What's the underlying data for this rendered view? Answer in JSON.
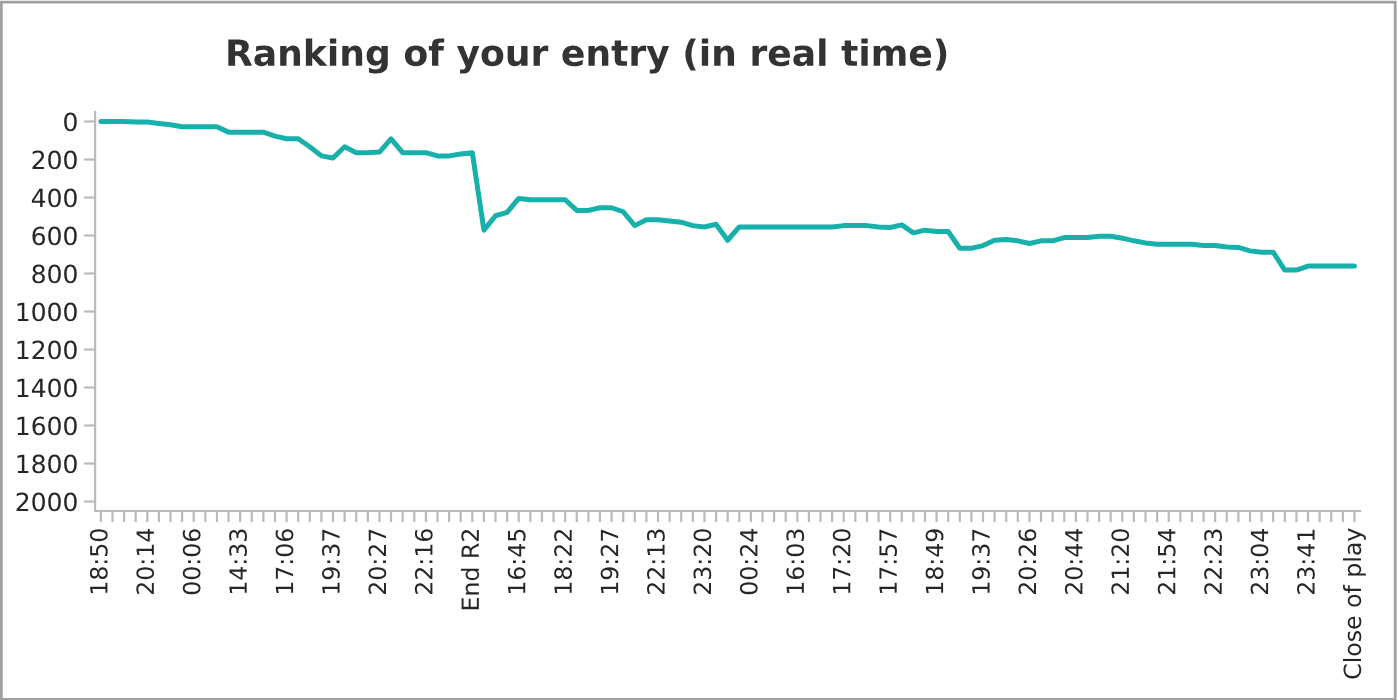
{
  "chart_data": {
    "type": "line",
    "title": "Ranking of your entry (in real time)",
    "categories": [
      "18:50",
      null,
      null,
      null,
      "20:14",
      null,
      null,
      null,
      "00:06",
      null,
      null,
      null,
      "14:33",
      null,
      null,
      null,
      "17:06",
      null,
      null,
      null,
      "19:37",
      null,
      null,
      null,
      "20:27",
      null,
      null,
      null,
      "22:16",
      null,
      null,
      null,
      "End R2",
      null,
      null,
      null,
      "16:45",
      null,
      null,
      null,
      "18:22",
      null,
      null,
      null,
      "19:27",
      null,
      null,
      null,
      "22:13",
      null,
      null,
      null,
      "23:20",
      null,
      null,
      null,
      "00:24",
      null,
      null,
      null,
      "16:03",
      null,
      null,
      null,
      "17:20",
      null,
      null,
      null,
      "17:57",
      null,
      null,
      null,
      "18:49",
      null,
      null,
      null,
      "19:37",
      null,
      null,
      null,
      "20:26",
      null,
      null,
      null,
      "20:44",
      null,
      null,
      null,
      "21:20",
      null,
      null,
      null,
      "21:54",
      null,
      null,
      null,
      "22:23",
      null,
      null,
      null,
      "23:04",
      null,
      null,
      null,
      "23:41",
      null,
      null,
      null,
      "Close of play"
    ],
    "series": [
      {
        "color": "#17b0ab",
        "values": [
          0,
          0,
          0,
          3,
          3,
          10,
          17,
          28,
          28,
          28,
          28,
          56,
          56,
          56,
          56,
          77,
          91,
          91,
          133,
          181,
          192,
          133,
          164,
          164,
          161,
          91,
          164,
          164,
          164,
          181,
          181,
          171,
          164,
          572,
          496,
          478,
          405,
          412,
          412,
          412,
          412,
          468,
          468,
          454,
          454,
          475,
          548,
          517,
          517,
          524,
          530,
          548,
          555,
          541,
          625,
          555,
          555,
          555,
          555,
          555,
          555,
          555,
          555,
          555,
          548,
          548,
          548,
          555,
          558,
          544,
          586,
          572,
          579,
          579,
          667,
          667,
          653,
          625,
          621,
          628,
          642,
          628,
          628,
          611,
          611,
          611,
          604,
          604,
          614,
          628,
          639,
          646,
          646,
          646,
          646,
          653,
          653,
          660,
          663,
          681,
          688,
          688,
          782,
          782,
          761,
          761,
          761,
          761,
          761
        ]
      }
    ],
    "ylim": [
      2050,
      -50
    ],
    "yticks": [
      0,
      200,
      400,
      600,
      800,
      1000,
      1200,
      1400,
      1600,
      1800,
      2000
    ],
    "grid": false,
    "legend": false
  }
}
